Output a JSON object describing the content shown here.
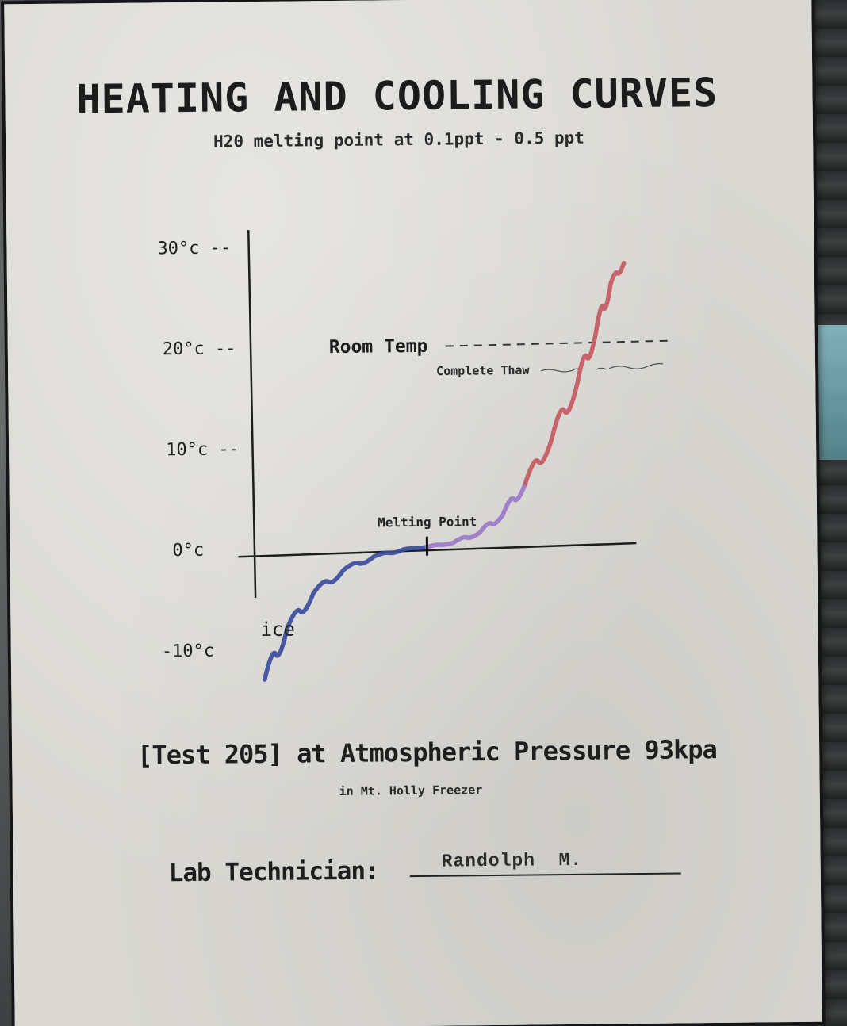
{
  "poster": {
    "title": "HEATING AND COOLING CURVES",
    "subtitle": "H20 melting point at 0.1ppt -  0.5 ppt",
    "footer_main": "[Test 205] at Atmospheric Pressure 93kpa",
    "footer_sub": "in Mt. Holly Freezer",
    "technician_label": "Lab Technician:",
    "technician_name": "Randolph  M."
  },
  "chart_data": {
    "type": "line",
    "title": "HEATING AND COOLING CURVES",
    "subtitle": "H20 melting point at 0.1ppt -  0.5 ppt",
    "xlabel": "",
    "ylabel": "",
    "ylim": [
      -13,
      31
    ],
    "xlim": [
      0,
      10
    ],
    "yticks": [
      {
        "value": 30,
        "label": "30°c --"
      },
      {
        "value": 20,
        "label": "20°c --"
      },
      {
        "value": 10,
        "label": "10°c --"
      },
      {
        "value": 0,
        "label": "0°c"
      },
      {
        "value": -10,
        "label": "-10°c"
      }
    ],
    "series": [
      {
        "color": "#3c4c9c",
        "x": [
          0.2,
          0.8,
          1.5,
          2.3,
          3.1,
          3.9,
          4.5
        ],
        "y": [
          -13,
          -8,
          -4.5,
          -2.2,
          -0.9,
          -0.2,
          0
        ]
      },
      {
        "color": "#9a78c8",
        "x": [
          4.5,
          5.2,
          5.9,
          6.5,
          7.1
        ],
        "y": [
          0,
          0.4,
          1.4,
          3.1,
          6.2
        ]
      },
      {
        "color": "#c55a62",
        "x": [
          7.1,
          7.8,
          8.5,
          9.0,
          9.4,
          9.75
        ],
        "y": [
          6.2,
          10.5,
          16.2,
          21.2,
          26.0,
          28.0
        ]
      }
    ],
    "reference_lines": [
      {
        "label": "Room Temp",
        "value": 20,
        "style": "dashed"
      },
      {
        "label": "Complete Thaw",
        "value": 18,
        "style": "scribble"
      }
    ],
    "annotations": [
      {
        "text": "Melting Point",
        "x": 4.5,
        "y": 0
      },
      {
        "text": "ice",
        "x": 0.5,
        "y": -8
      }
    ],
    "grid": false,
    "legend": "none"
  },
  "colors": {
    "paper": "#d9d8d3",
    "ink": "#1c1c1c"
  }
}
